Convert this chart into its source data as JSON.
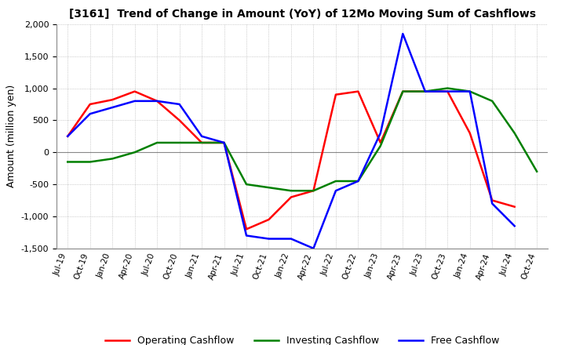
{
  "title": "[3161]  Trend of Change in Amount (YoY) of 12Mo Moving Sum of Cashflows",
  "ylabel": "Amount (million yen)",
  "ylim": [
    -1500,
    2000
  ],
  "yticks": [
    -1500,
    -1000,
    -500,
    0,
    500,
    1000,
    1500,
    2000
  ],
  "x_labels": [
    "Jul-19",
    "Oct-19",
    "Jan-20",
    "Apr-20",
    "Jul-20",
    "Oct-20",
    "Jan-21",
    "Apr-21",
    "Jul-21",
    "Oct-21",
    "Jan-22",
    "Apr-22",
    "Jul-22",
    "Oct-22",
    "Jan-23",
    "Apr-23",
    "Jul-23",
    "Oct-23",
    "Jan-24",
    "Apr-24",
    "Jul-24",
    "Oct-24"
  ],
  "operating": [
    250,
    750,
    820,
    950,
    800,
    500,
    150,
    150,
    -1200,
    -1050,
    -700,
    -600,
    900,
    950,
    150,
    950,
    950,
    950,
    300,
    -750,
    -850,
    null
  ],
  "investing": [
    -150,
    -150,
    -100,
    0,
    150,
    150,
    150,
    150,
    -500,
    -550,
    -600,
    -600,
    -450,
    -450,
    100,
    950,
    950,
    1000,
    950,
    800,
    300,
    -300
  ],
  "free": [
    250,
    600,
    700,
    800,
    800,
    750,
    250,
    150,
    -1300,
    -1350,
    -1350,
    -1500,
    -600,
    -450,
    300,
    1850,
    950,
    950,
    950,
    -800,
    -1150,
    null
  ],
  "operating_color": "#ff0000",
  "investing_color": "#008000",
  "free_color": "#0000ff",
  "background_color": "#ffffff",
  "grid_color": "#aaaaaa"
}
